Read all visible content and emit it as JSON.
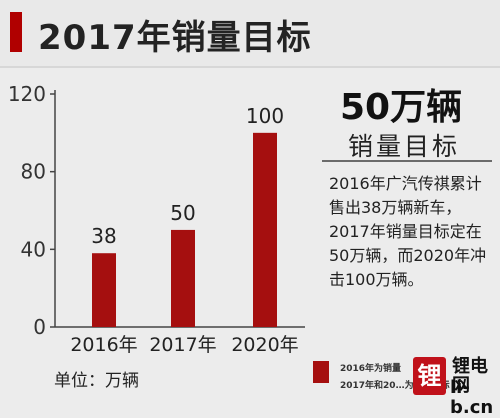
{
  "title": "2017年销量目标",
  "headline": "50万辆",
  "subhead": "销量目标",
  "body_text": "2016年广汽传祺累计售出38万辆新车，2017年销量目标定在50万辆，而2020年冲击100万辆。",
  "unit_label": "单位：万辆",
  "legend": [
    "2016年为销量",
    "2017年和20…为销量目标"
  ],
  "watermark": {
    "logo_char": "锂",
    "name": "锂电网",
    "url": "li-b.cn"
  },
  "colors": {
    "bar": "#a50f0f",
    "accent": "#b00000",
    "background": "#ececec"
  },
  "chart_data": {
    "type": "bar",
    "categories": [
      "2016年",
      "2017年",
      "2020年"
    ],
    "values": [
      38,
      50,
      100
    ],
    "data_labels": [
      "38",
      "50",
      "100"
    ],
    "ylim": [
      0,
      120
    ],
    "yticks": [
      0,
      40,
      80,
      120
    ],
    "grid": false,
    "title": "",
    "xlabel": "",
    "ylabel": ""
  }
}
